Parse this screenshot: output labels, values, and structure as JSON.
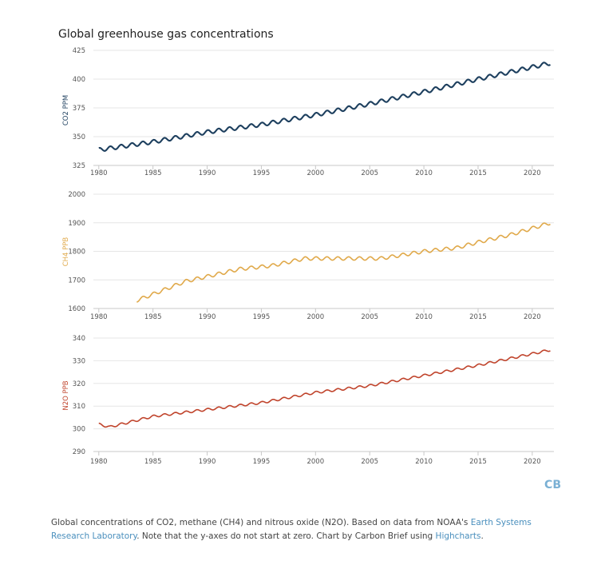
{
  "chart_data": [
    {
      "type": "line",
      "title": "Global greenhouse gas concentrations",
      "series": [
        {
          "name": "CO2",
          "color": "#1d3f5e",
          "x": [
            1980,
            1985,
            1990,
            1995,
            2000,
            2005,
            2010,
            2015,
            2021.7
          ],
          "values": [
            338.5,
            345.5,
            354.0,
            360.5,
            369.0,
            378.5,
            389.0,
            400.0,
            414.0
          ],
          "seasonal_amplitude": 1.7
        }
      ],
      "ylabel": "CO2 PPM",
      "ylim": [
        325,
        425
      ],
      "yticks": [
        325,
        350,
        375,
        400,
        425
      ],
      "xlim": [
        1979.5,
        2022
      ],
      "xticks": [
        1980,
        1985,
        1990,
        1995,
        2000,
        2005,
        2010,
        2015,
        2020
      ],
      "grid": true
    },
    {
      "type": "line",
      "series": [
        {
          "name": "CH4",
          "color": "#e0a94a",
          "x": [
            1983.5,
            1985,
            1988,
            1990,
            1993,
            1996,
            1999,
            2003,
            2006,
            2008,
            2010,
            2013,
            2015,
            2018,
            2021.7
          ],
          "values": [
            1628,
            1650,
            1695,
            1712,
            1738,
            1750,
            1775,
            1775,
            1775,
            1787,
            1800,
            1812,
            1832,
            1858,
            1900
          ],
          "seasonal_amplitude": 6
        }
      ],
      "ylabel": "CH4 PPB",
      "ylim": [
        1600,
        2000
      ],
      "yticks": [
        1600,
        1700,
        1800,
        1900,
        2000
      ],
      "xlim": [
        1979.5,
        2022
      ],
      "xticks": [
        1980,
        1985,
        1990,
        1995,
        2000,
        2005,
        2010,
        2015,
        2020
      ],
      "grid": true
    },
    {
      "type": "line",
      "series": [
        {
          "name": "N2O",
          "color": "#c0442c",
          "x": [
            1980,
            1981,
            1985,
            1990,
            1995,
            2000,
            2005,
            2010,
            2015,
            2021.7
          ],
          "values": [
            302,
            300.8,
            305.5,
            308.5,
            311.5,
            316.0,
            319.0,
            323.5,
            328.0,
            334.8
          ],
          "seasonal_amplitude": 0.5
        }
      ],
      "ylabel": "N2O PPB",
      "ylim": [
        290,
        340
      ],
      "yticks": [
        290,
        300,
        310,
        320,
        330,
        340
      ],
      "xlim": [
        1979.5,
        2022
      ],
      "xticks": [
        1980,
        1985,
        1990,
        1995,
        2000,
        2005,
        2010,
        2015,
        2020
      ],
      "grid": true
    }
  ],
  "logo": {
    "text": "CB",
    "color": "#7ab0d4"
  },
  "caption": {
    "prefix": "Global concentrations of CO2, methane (CH4) and nitrous oxide (N2O). Based on data from NOAA's ",
    "link1": "Earth Systems Research Laboratory",
    "middle": ". Note that the y-axes do not start at zero. Chart by Carbon Brief using ",
    "link2": "Highcharts",
    "suffix": "."
  },
  "colors": {
    "grid": "#e6e6e6",
    "axis": "#c8c8c8",
    "link": "#4a8fbd"
  }
}
